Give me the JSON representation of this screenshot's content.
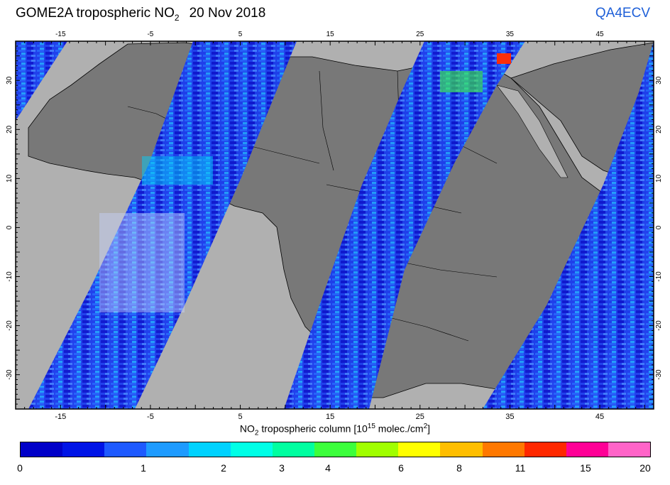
{
  "header": {
    "title_main": "GOME2A tropospheric NO",
    "title_sub": "2",
    "date": "20 Nov 2018",
    "product": "QA4ECV"
  },
  "map": {
    "lon_range": [
      -20,
      51
    ],
    "lat_range": [
      -37,
      38
    ],
    "top_ticks": [
      "-15",
      "-5",
      "5",
      "15",
      "25",
      "35",
      "45"
    ],
    "bottom_ticks": [
      "-15",
      "-5",
      "5",
      "15",
      "25",
      "35",
      "45"
    ],
    "lat_ticks": [
      "30",
      "20",
      "10",
      "0",
      "-10",
      "-20",
      "-30"
    ],
    "colors": {
      "land": "#787878",
      "ocean": "#b0b0b0",
      "no_data": "#b0b0b0"
    }
  },
  "axis": {
    "label_pre": "NO",
    "label_sub": "2",
    "label_mid": " tropospheric column [10",
    "label_sup1": "15",
    "label_mid2": " molec./cm",
    "label_sup2": "2",
    "label_end": "]"
  },
  "colorbar": {
    "labels": [
      "0",
      "1",
      "2",
      "3",
      "4",
      "6",
      "8",
      "11",
      "15",
      "20"
    ],
    "colors": [
      "#0000c8",
      "#0014e6",
      "#1e5aff",
      "#1e9bff",
      "#00d2ff",
      "#00ffe6",
      "#00ffa0",
      "#3cff3c",
      "#a0ff00",
      "#ffff00",
      "#ffbe00",
      "#ff7800",
      "#ff2800",
      "#ff0096",
      "#ff64c8"
    ]
  }
}
